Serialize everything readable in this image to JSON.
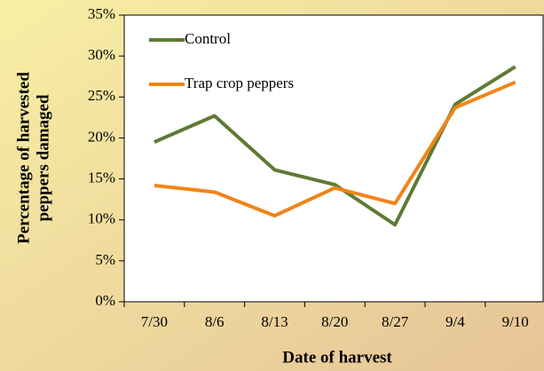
{
  "chart_data": {
    "type": "line",
    "ylabel": [
      "Percentage of harvested",
      "peppers damaged"
    ],
    "xlabel": "Date of harvest",
    "categories": [
      "7/30",
      "8/6",
      "8/13",
      "8/20",
      "8/27",
      "9/4",
      "9/10"
    ],
    "series": [
      {
        "name": "Control",
        "color": "#5e7a34",
        "values": [
          19.5,
          22.7,
          16.1,
          14.3,
          9.4,
          24.1,
          28.7
        ]
      },
      {
        "name": "Trap crop peppers",
        "color": "#f08418",
        "values": [
          14.2,
          13.4,
          10.5,
          13.9,
          12.0,
          23.7,
          26.8
        ]
      }
    ],
    "ylim": [
      0,
      35
    ],
    "yticks": [
      {
        "value": 0,
        "label": "0%"
      },
      {
        "value": 5,
        "label": "5%"
      },
      {
        "value": 10,
        "label": "10%"
      },
      {
        "value": 15,
        "label": "15%"
      },
      {
        "value": 20,
        "label": "20%"
      },
      {
        "value": 25,
        "label": "25%"
      },
      {
        "value": 30,
        "label": "30%"
      },
      {
        "value": 35,
        "label": "35%"
      }
    ],
    "legend": "top-left"
  }
}
